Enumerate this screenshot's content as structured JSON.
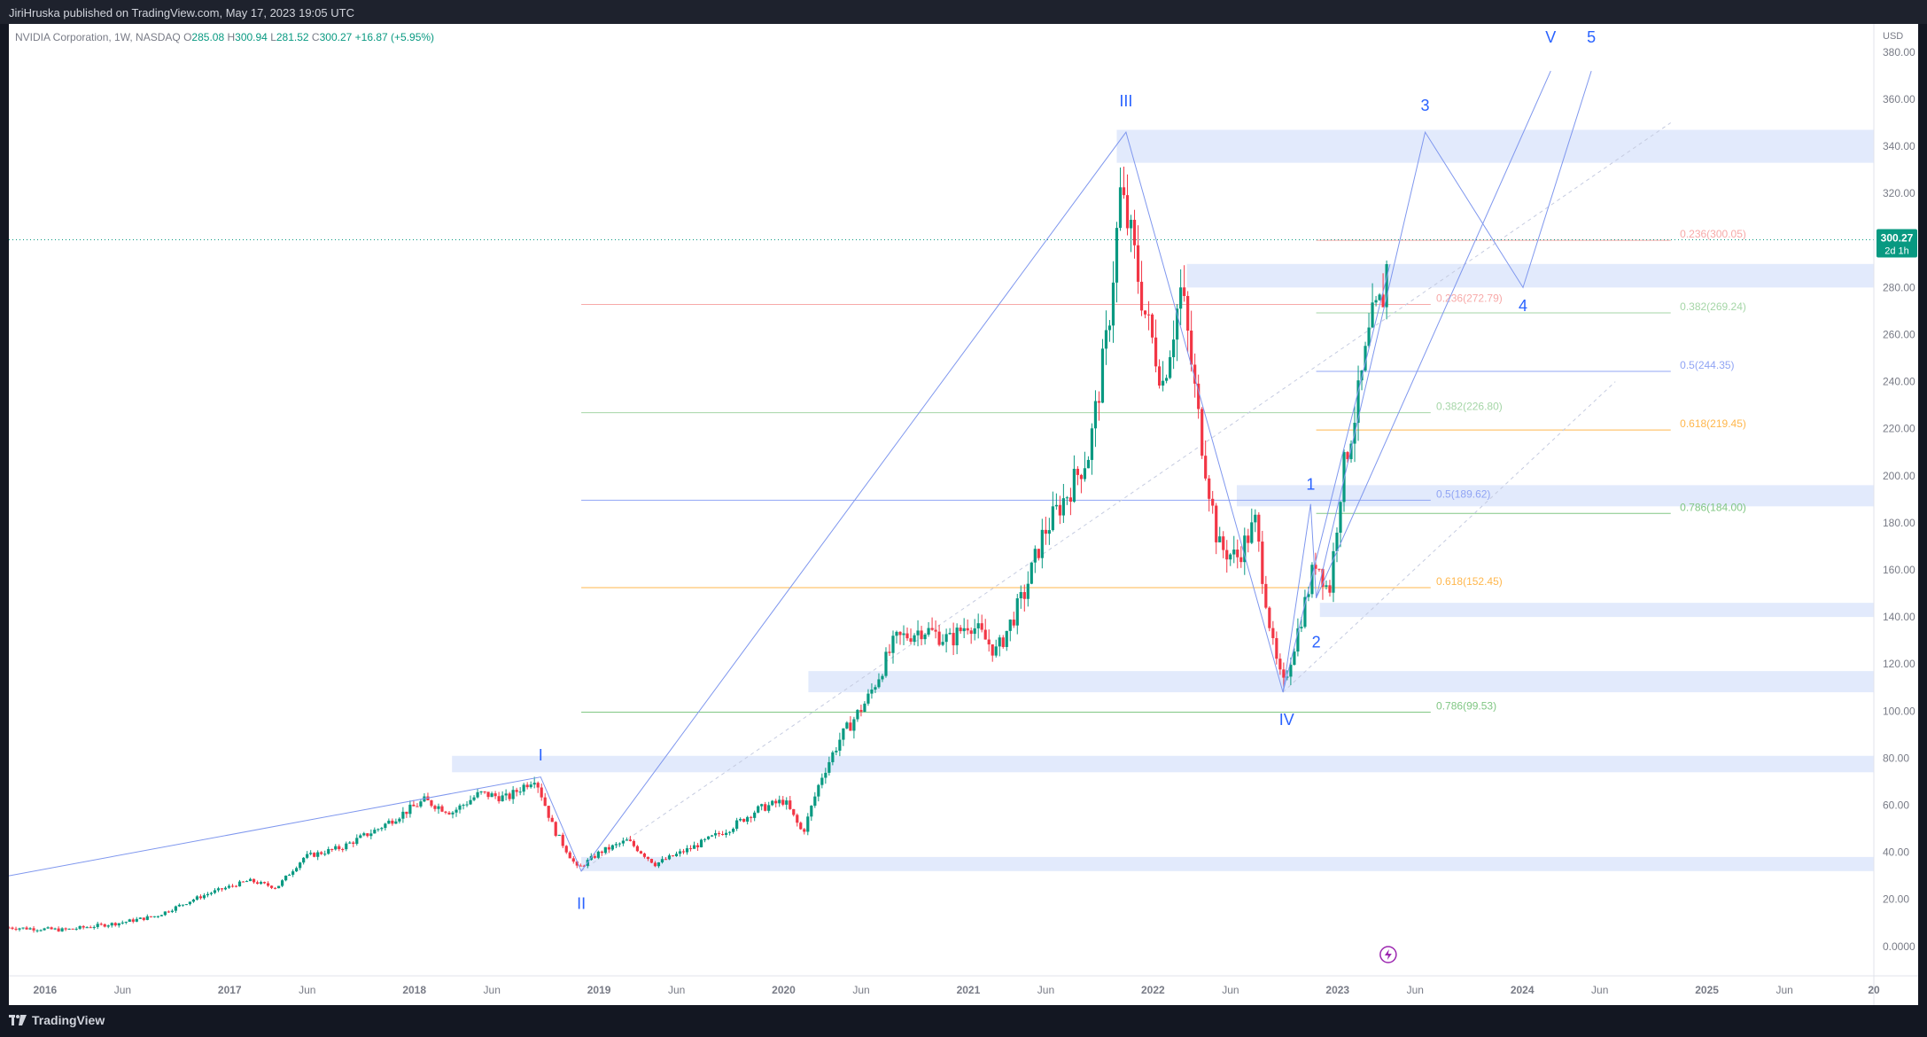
{
  "header": {
    "publisher": "JiriHruska published on TradingView.com, May 17, 2023 19:05 UTC"
  },
  "legend": {
    "symbol": "NVIDIA Corporation, 1W, NASDAQ",
    "o_label": "O",
    "o": "285.08",
    "h_label": "H",
    "h": "300.94",
    "l_label": "L",
    "l": "281.52",
    "c_label": "C",
    "c": "300.27",
    "change": "+16.87 (+5.95%)"
  },
  "footer": {
    "brand": "TradingView"
  },
  "colors": {
    "up": "#089981",
    "down": "#f23645",
    "wave": "#2962ff",
    "zone": "#dde6fb",
    "line": "#9fb3f5"
  },
  "chart_data": {
    "type": "candlestick",
    "currency": "USD",
    "y_ticks": [
      "0.0000",
      "20.00",
      "40.00",
      "60.00",
      "80.00",
      "100.00",
      "120.00",
      "140.00",
      "160.00",
      "180.00",
      "200.00",
      "220.00",
      "240.00",
      "260.00",
      "280.00",
      "300.00",
      "320.00",
      "340.00",
      "360.00",
      "380.00"
    ],
    "y_tick_values": [
      0,
      20,
      40,
      60,
      80,
      100,
      120,
      140,
      160,
      180,
      200,
      220,
      240,
      260,
      280,
      300,
      320,
      340,
      360,
      380
    ],
    "ylim": [
      -11,
      392
    ],
    "x_ticks": [
      {
        "label": "2016",
        "t": 2016.0
      },
      {
        "label": "Jun",
        "t": 2016.42
      },
      {
        "label": "2017",
        "t": 2017.0
      },
      {
        "label": "Jun",
        "t": 2017.42
      },
      {
        "label": "2018",
        "t": 2018.0
      },
      {
        "label": "Jun",
        "t": 2018.42
      },
      {
        "label": "2019",
        "t": 2019.0
      },
      {
        "label": "Jun",
        "t": 2019.42
      },
      {
        "label": "2020",
        "t": 2020.0
      },
      {
        "label": "Jun",
        "t": 2020.42
      },
      {
        "label": "2021",
        "t": 2021.0
      },
      {
        "label": "Jun",
        "t": 2021.42
      },
      {
        "label": "2022",
        "t": 2022.0
      },
      {
        "label": "Jun",
        "t": 2022.42
      },
      {
        "label": "2023",
        "t": 2023.0
      },
      {
        "label": "Jun",
        "t": 2023.42
      },
      {
        "label": "2024",
        "t": 2024.0
      },
      {
        "label": "Jun",
        "t": 2024.42
      },
      {
        "label": "2025",
        "t": 2025.0
      },
      {
        "label": "Jun",
        "t": 2025.42
      },
      {
        "label": "20",
        "t": 2026.0
      }
    ],
    "xlim": [
      2015.9,
      2026.0
    ],
    "last_price": "300.27",
    "last_price_countdown": "2d 1h",
    "price_path": [
      [
        2015.9,
        8
      ],
      [
        2016.2,
        7
      ],
      [
        2016.5,
        10
      ],
      [
        2016.7,
        13
      ],
      [
        2016.9,
        20
      ],
      [
        2017.0,
        23
      ],
      [
        2017.2,
        28
      ],
      [
        2017.35,
        25
      ],
      [
        2017.5,
        38
      ],
      [
        2017.7,
        42
      ],
      [
        2017.9,
        50
      ],
      [
        2018.0,
        55
      ],
      [
        2018.15,
        62
      ],
      [
        2018.3,
        57
      ],
      [
        2018.45,
        65
      ],
      [
        2018.6,
        63
      ],
      [
        2018.75,
        72
      ],
      [
        2018.85,
        50
      ],
      [
        2018.98,
        33
      ],
      [
        2019.1,
        40
      ],
      [
        2019.25,
        45
      ],
      [
        2019.4,
        35
      ],
      [
        2019.6,
        42
      ],
      [
        2019.8,
        50
      ],
      [
        2019.95,
        58
      ],
      [
        2020.1,
        62
      ],
      [
        2020.2,
        48
      ],
      [
        2020.3,
        72
      ],
      [
        2020.4,
        88
      ],
      [
        2020.55,
        105
      ],
      [
        2020.7,
        130
      ],
      [
        2020.85,
        135
      ],
      [
        2021.0,
        130
      ],
      [
        2021.1,
        138
      ],
      [
        2021.25,
        125
      ],
      [
        2021.4,
        150
      ],
      [
        2021.5,
        175
      ],
      [
        2021.65,
        195
      ],
      [
        2021.75,
        210
      ],
      [
        2021.85,
        260
      ],
      [
        2021.92,
        320
      ],
      [
        2021.98,
        300
      ],
      [
        2022.05,
        270
      ],
      [
        2022.15,
        240
      ],
      [
        2022.25,
        280
      ],
      [
        2022.35,
        220
      ],
      [
        2022.45,
        170
      ],
      [
        2022.55,
        165
      ],
      [
        2022.65,
        180
      ],
      [
        2022.75,
        125
      ],
      [
        2022.8,
        110
      ],
      [
        2022.9,
        140
      ],
      [
        2022.98,
        165
      ],
      [
        2023.05,
        150
      ],
      [
        2023.12,
        200
      ],
      [
        2023.2,
        230
      ],
      [
        2023.28,
        265
      ],
      [
        2023.34,
        275
      ],
      [
        2023.38,
        300
      ]
    ],
    "zones": [
      {
        "t0": 2021.9,
        "t1": 2026.0,
        "y0": 333,
        "y1": 347
      },
      {
        "t0": 2022.28,
        "t1": 2026.0,
        "y0": 280,
        "y1": 290
      },
      {
        "t0": 2022.55,
        "t1": 2026.0,
        "y0": 187,
        "y1": 196
      },
      {
        "t0": 2023.0,
        "t1": 2026.0,
        "y0": 140,
        "y1": 146
      },
      {
        "t0": 2020.23,
        "t1": 2026.0,
        "y0": 108,
        "y1": 117
      },
      {
        "t0": 2018.3,
        "t1": 2026.0,
        "y0": 74,
        "y1": 81
      },
      {
        "t0": 2019.0,
        "t1": 2026.0,
        "y0": 32,
        "y1": 38
      }
    ],
    "fib_left": [
      {
        "label": "0.236(272.79)",
        "y": 272.79,
        "color": "#f7a9a8"
      },
      {
        "label": "0.382(226.80)",
        "y": 226.8,
        "color": "#a5d6a7"
      },
      {
        "label": "0.5(189.62)",
        "y": 189.62,
        "color": "#90a4f4"
      },
      {
        "label": "0.618(152.45)",
        "y": 152.45,
        "color": "#ffb74d"
      },
      {
        "label": "0.786(99.53)",
        "y": 99.53,
        "color": "#81c784"
      }
    ],
    "fib_right": [
      {
        "label": "0.236(300.05)",
        "y": 300.05,
        "color": "#f7a9a8"
      },
      {
        "label": "0.382(269.24)",
        "y": 269.24,
        "color": "#a5d6a7"
      },
      {
        "label": "0.5(244.35)",
        "y": 244.35,
        "color": "#90a4f4"
      },
      {
        "label": "0.618(219.45)",
        "y": 219.45,
        "color": "#ffb74d"
      },
      {
        "label": "0.786(184.00)",
        "y": 184.0,
        "color": "#81c784"
      }
    ],
    "wave_labels": [
      {
        "text": "I",
        "t": 2018.78,
        "y": 79
      },
      {
        "text": "II",
        "t": 2019.0,
        "y": 16
      },
      {
        "text": "III",
        "t": 2021.95,
        "y": 357
      },
      {
        "text": "IV",
        "t": 2022.82,
        "y": 94
      },
      {
        "text": "V",
        "t": 2024.25,
        "y": 384
      },
      {
        "text": "1",
        "t": 2022.95,
        "y": 194
      },
      {
        "text": "2",
        "t": 2022.98,
        "y": 127
      },
      {
        "text": "3",
        "t": 2023.57,
        "y": 355
      },
      {
        "text": "4",
        "t": 2024.1,
        "y": 270
      },
      {
        "text": "5",
        "t": 2024.47,
        "y": 384
      }
    ]
  }
}
